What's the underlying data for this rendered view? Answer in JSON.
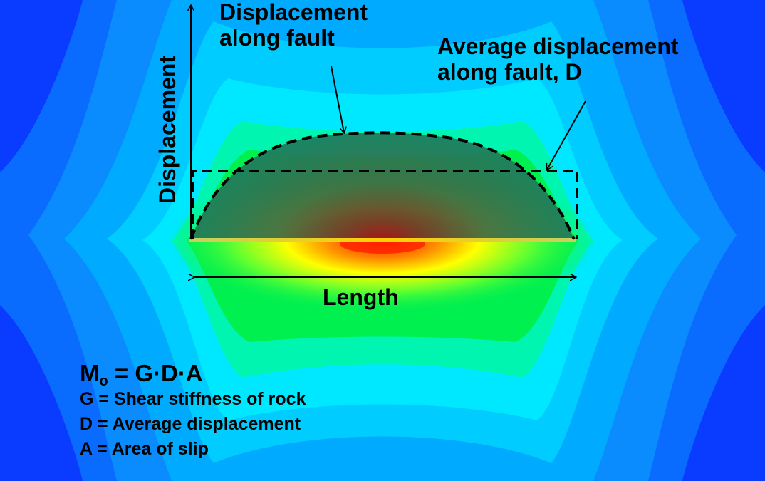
{
  "labels": {
    "displacement_along_fault_line1": "Displacement",
    "displacement_along_fault_line2": "along fault",
    "average_displacement_line1": "Average displacement",
    "average_displacement_line2": "along fault, D",
    "y_axis": "Displacement",
    "length": "Length"
  },
  "formula": {
    "moment_symbol": "M",
    "moment_subscript": "o",
    "expression": " = G·D·A",
    "definitions": [
      "G = Shear stiffness of rock",
      "D = Average displacement",
      "A = Area of slip"
    ]
  },
  "colors": {
    "field_deep_blue": "#0a3cff",
    "field_blue": "#0a78ff",
    "field_cyan": "#00e8ff",
    "field_green": "#00f050",
    "field_yellow": "#ffff00",
    "field_red": "#ff2000",
    "displacement_profile_fill": "#1f7a5c"
  }
}
